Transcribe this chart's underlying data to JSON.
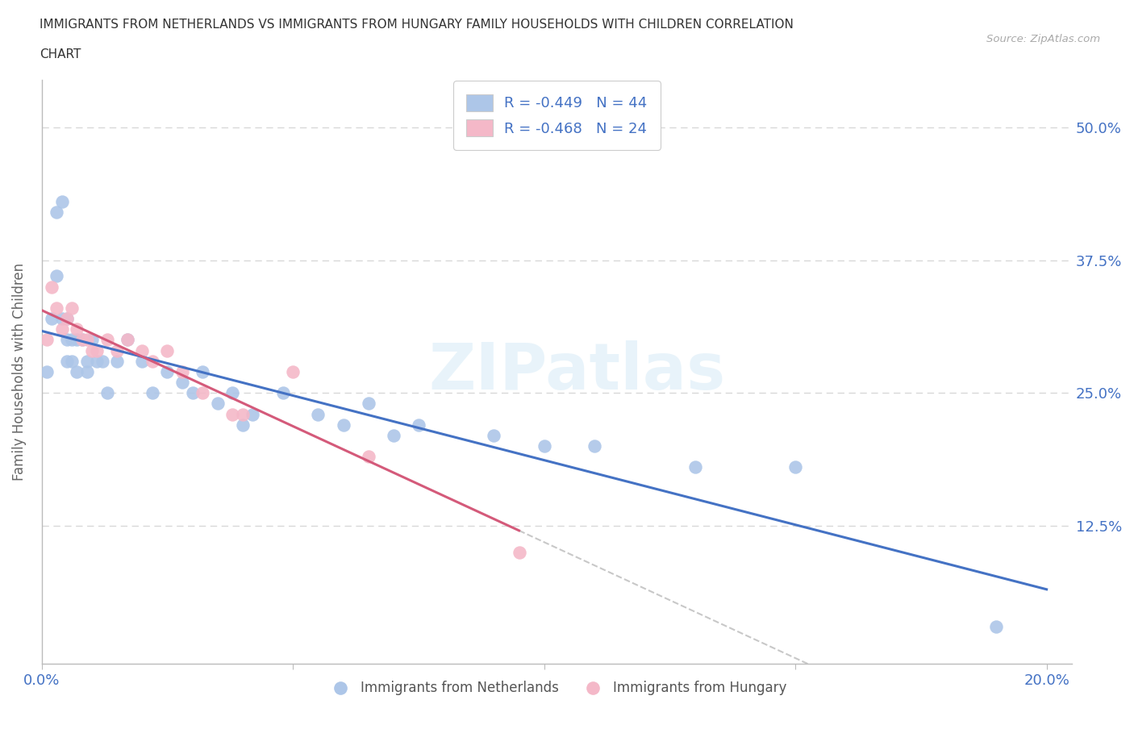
{
  "title_line1": "IMMIGRANTS FROM NETHERLANDS VS IMMIGRANTS FROM HUNGARY FAMILY HOUSEHOLDS WITH CHILDREN CORRELATION",
  "title_line2": "CHART",
  "source": "Source: ZipAtlas.com",
  "ylabel": "Family Households with Children",
  "xlim": [
    0.0,
    0.205
  ],
  "ylim": [
    -0.005,
    0.545
  ],
  "yticks": [
    0.0,
    0.125,
    0.25,
    0.375,
    0.5
  ],
  "ytick_labels": [
    "",
    "12.5%",
    "25.0%",
    "37.5%",
    "50.0%"
  ],
  "xticks": [
    0.0,
    0.05,
    0.1,
    0.15,
    0.2
  ],
  "xtick_labels": [
    "0.0%",
    "",
    "",
    "",
    "20.0%"
  ],
  "r_netherlands": -0.449,
  "n_netherlands": 44,
  "r_hungary": -0.468,
  "n_hungary": 24,
  "netherlands_color": "#adc6e8",
  "hungary_color": "#f4b8c8",
  "trend_netherlands_color": "#4472c4",
  "trend_hungary_color": "#d45a7a",
  "legend_text_color": "#4472c4",
  "netherlands_x": [
    0.001,
    0.002,
    0.003,
    0.003,
    0.004,
    0.004,
    0.005,
    0.005,
    0.005,
    0.006,
    0.006,
    0.007,
    0.007,
    0.008,
    0.009,
    0.009,
    0.01,
    0.011,
    0.012,
    0.013,
    0.015,
    0.017,
    0.02,
    0.022,
    0.025,
    0.028,
    0.03,
    0.032,
    0.035,
    0.038,
    0.04,
    0.042,
    0.048,
    0.055,
    0.06,
    0.065,
    0.07,
    0.075,
    0.09,
    0.1,
    0.11,
    0.13,
    0.15,
    0.19
  ],
  "netherlands_y": [
    0.27,
    0.32,
    0.42,
    0.36,
    0.43,
    0.32,
    0.3,
    0.32,
    0.28,
    0.3,
    0.28,
    0.3,
    0.27,
    0.3,
    0.28,
    0.27,
    0.3,
    0.28,
    0.28,
    0.25,
    0.28,
    0.3,
    0.28,
    0.25,
    0.27,
    0.26,
    0.25,
    0.27,
    0.24,
    0.25,
    0.22,
    0.23,
    0.25,
    0.23,
    0.22,
    0.24,
    0.21,
    0.22,
    0.21,
    0.2,
    0.2,
    0.18,
    0.18,
    0.03
  ],
  "hungary_x": [
    0.001,
    0.002,
    0.003,
    0.004,
    0.005,
    0.006,
    0.007,
    0.008,
    0.009,
    0.01,
    0.011,
    0.013,
    0.015,
    0.017,
    0.02,
    0.022,
    0.025,
    0.028,
    0.032,
    0.038,
    0.04,
    0.05,
    0.065,
    0.095
  ],
  "hungary_y": [
    0.3,
    0.35,
    0.33,
    0.31,
    0.32,
    0.33,
    0.31,
    0.3,
    0.3,
    0.29,
    0.29,
    0.3,
    0.29,
    0.3,
    0.29,
    0.28,
    0.29,
    0.27,
    0.25,
    0.23,
    0.23,
    0.27,
    0.19,
    0.1
  ],
  "watermark": "ZIPatlas",
  "background_color": "#ffffff",
  "grid_color": "#d8d8d8",
  "axis_label_color": "#666666",
  "tick_label_color": "#4472c4",
  "title_color": "#333333"
}
